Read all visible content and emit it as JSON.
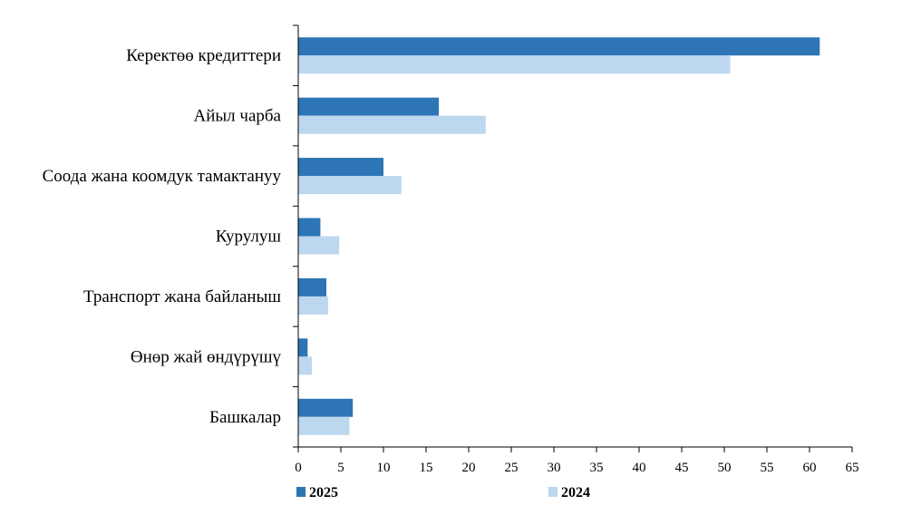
{
  "chart_data": {
    "type": "bar",
    "orientation": "horizontal",
    "categories": [
      "Керектөө кредиттери",
      "Айыл чарба",
      "Соода жана коомдук тамактануу",
      "Курулуш",
      "Транспорт жана байланыш",
      "Өнөр жай өндүрүшү",
      "Башкалар"
    ],
    "series": [
      {
        "name": "2025",
        "color": "#2E75B6",
        "values": [
          61.2,
          16.5,
          10.0,
          2.6,
          3.3,
          1.1,
          6.4
        ]
      },
      {
        "name": "2024",
        "color": "#BDD7EE",
        "values": [
          50.7,
          22.0,
          12.1,
          4.8,
          3.5,
          1.6,
          6.0
        ]
      }
    ],
    "xlim": [
      0,
      65
    ],
    "xticks": [
      "0",
      "5",
      "10",
      "15",
      "20",
      "25",
      "30",
      "35",
      "40",
      "45",
      "50",
      "55",
      "60",
      "65"
    ],
    "grid": false,
    "legend": "bottom"
  }
}
